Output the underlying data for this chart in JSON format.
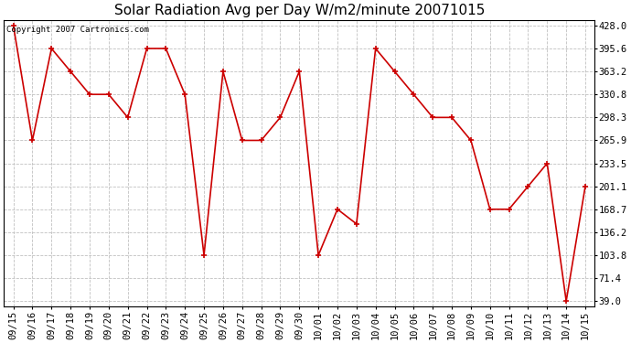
{
  "title": "Solar Radiation Avg per Day W/m2/minute 20071015",
  "copyright_text": "Copyright 2007 Cartronics.com",
  "dates": [
    "09/15",
    "09/16",
    "09/17",
    "09/18",
    "09/19",
    "09/20",
    "09/21",
    "09/22",
    "09/23",
    "09/24",
    "09/25",
    "09/26",
    "09/27",
    "09/28",
    "09/29",
    "09/30",
    "10/01",
    "10/02",
    "10/03",
    "10/04",
    "10/05",
    "10/06",
    "10/07",
    "10/08",
    "10/09",
    "10/10",
    "10/11",
    "10/12",
    "10/13",
    "10/14",
    "10/15"
  ],
  "values": [
    428.0,
    265.9,
    395.6,
    363.2,
    330.8,
    330.8,
    298.3,
    395.6,
    395.6,
    330.8,
    103.8,
    363.2,
    265.9,
    265.9,
    298.3,
    363.2,
    103.8,
    168.7,
    148.0,
    395.6,
    363.2,
    330.8,
    298.3,
    298.3,
    265.9,
    168.7,
    168.7,
    201.1,
    233.5,
    39.0,
    201.1
  ],
  "yticks": [
    39.0,
    71.4,
    103.8,
    136.2,
    168.7,
    201.1,
    233.5,
    265.9,
    298.3,
    330.8,
    363.2,
    395.6,
    428.0
  ],
  "ymin": 39.0,
  "ymax": 428.0,
  "line_color": "#cc0000",
  "bg_color": "#ffffff",
  "grid_color": "#c0c0c0",
  "title_fontsize": 11,
  "tick_fontsize": 7.5,
  "copyright_fontsize": 6.5
}
